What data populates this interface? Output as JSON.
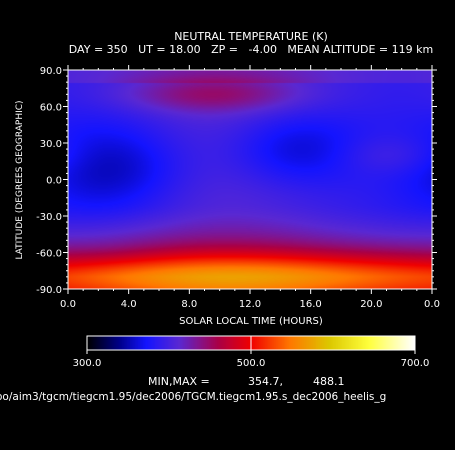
{
  "chart_data": {
    "type": "heatmap",
    "title": "NEUTRAL TEMPERATURE (K)",
    "subtitle": "DAY = 350   UT = 18.00   ZP =   -4.00   MEAN ALTITUDE = 119 km",
    "xlabel": "SOLAR LOCAL TIME (HOURS)",
    "ylabel": "LATITUDE (DEGREES GEOGRAPHIC)",
    "xlim": [
      0,
      24
    ],
    "ylim": [
      -90,
      90
    ],
    "x_ticks": [
      "0.0",
      "4.0",
      "8.0",
      "12.0",
      "16.0",
      "20.0",
      "0.0"
    ],
    "y_ticks": [
      "90.0",
      "60.0",
      "30.0",
      "0.0",
      "-30.0",
      "-60.0",
      "-90.0"
    ],
    "colorbar": {
      "min": 300.0,
      "max": 700.0,
      "tick_labels": [
        "300.0",
        "500.0",
        "700.0"
      ]
    },
    "minmax_label": "MIN,MAX =",
    "min_value": "354.7,",
    "max_value": "488.1",
    "features": [
      {
        "lt": 3.0,
        "lat": 10,
        "value": 356,
        "width_lt": 3.5,
        "width_lat": 28
      },
      {
        "lt": 15.0,
        "lat": 25,
        "value": 360,
        "width_lt": 3.2,
        "width_lat": 22
      },
      {
        "lt": 9.5,
        "lat": 70,
        "value": 440,
        "width_lt": 4,
        "width_lat": 10
      },
      {
        "lt": 21.5,
        "lat": 20,
        "value": 420,
        "width_lt": 2.5,
        "width_lat": 12
      },
      {
        "lt": 3.0,
        "lat": -60,
        "value": 395,
        "width_lt": 2.5,
        "width_lat": 8
      },
      {
        "lt": 12.0,
        "lat": -80,
        "value": 488,
        "width_lt": 14,
        "width_lat": 14
      }
    ]
  },
  "footer": {
    "path": "oo/aim3/tgcm/tiegcm1.95/dec2006/TGCM.tiegcm1.95.s_dec2006_heelis_g"
  }
}
